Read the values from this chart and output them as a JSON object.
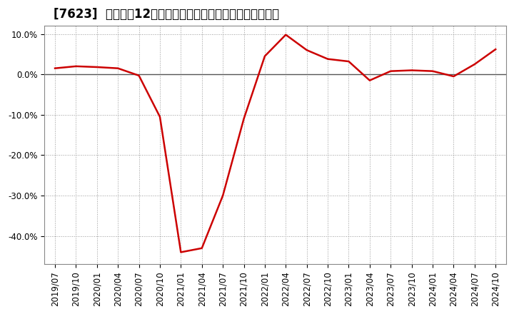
{
  "title": "[7623]  売上高の12か月移動合計の対前年同期増減率の推移",
  "x_labels": [
    "2019/07",
    "2019/10",
    "2020/01",
    "2020/04",
    "2020/07",
    "2020/10",
    "2021/01",
    "2021/04",
    "2021/07",
    "2021/10",
    "2022/01",
    "2022/04",
    "2022/07",
    "2022/10",
    "2023/01",
    "2023/04",
    "2023/07",
    "2023/10",
    "2024/01",
    "2024/04",
    "2024/07",
    "2024/10"
  ],
  "y_values": [
    1.5,
    2.0,
    1.8,
    1.5,
    -0.3,
    -10.5,
    -44.0,
    -43.0,
    -30.0,
    -11.0,
    4.5,
    9.8,
    6.0,
    3.8,
    3.2,
    -1.5,
    0.8,
    1.0,
    0.8,
    -0.5,
    2.5,
    6.2
  ],
  "line_color": "#cc0000",
  "line_width": 1.8,
  "ylim_min": -47,
  "ylim_max": 12,
  "yticks": [
    10.0,
    0.0,
    -10.0,
    -20.0,
    -30.0,
    -40.0
  ],
  "background_color": "#ffffff",
  "grid_color": "#999999",
  "zero_line_color": "#555555",
  "title_fontsize": 12,
  "tick_fontsize": 8.5
}
